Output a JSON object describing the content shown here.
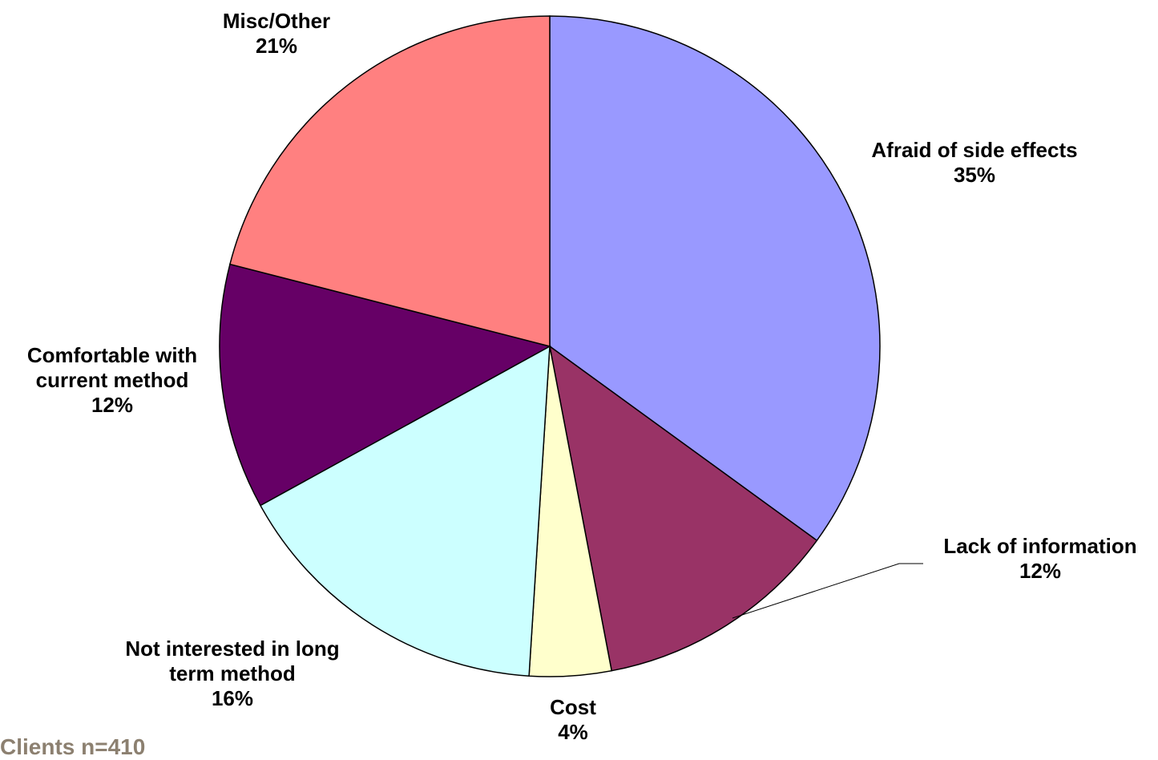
{
  "chart_data": {
    "type": "pie",
    "title": "",
    "start": "12 o'clock",
    "direction": "clockwise",
    "slices": [
      {
        "label_lines": [
          "Afraid of side effects"
        ],
        "percent_label": "35%",
        "value": 35,
        "color": "#9999ff"
      },
      {
        "label_lines": [
          "Lack of information"
        ],
        "percent_label": "12%",
        "value": 12,
        "color": "#993366"
      },
      {
        "label_lines": [
          "Cost"
        ],
        "percent_label": "4%",
        "value": 4,
        "color": "#ffffcc"
      },
      {
        "label_lines": [
          "Not interested in long",
          "term method"
        ],
        "percent_label": "16%",
        "value": 16,
        "color": "#ccffff"
      },
      {
        "label_lines": [
          "Comfortable with",
          "current method"
        ],
        "percent_label": "12%",
        "value": 12,
        "color": "#660066"
      },
      {
        "label_lines": [
          "Misc/Other"
        ],
        "percent_label": "21%",
        "value": 21,
        "color": "#ff8080"
      }
    ]
  },
  "footnote": {
    "text": "Clients n=410",
    "color": "#8c8070"
  }
}
